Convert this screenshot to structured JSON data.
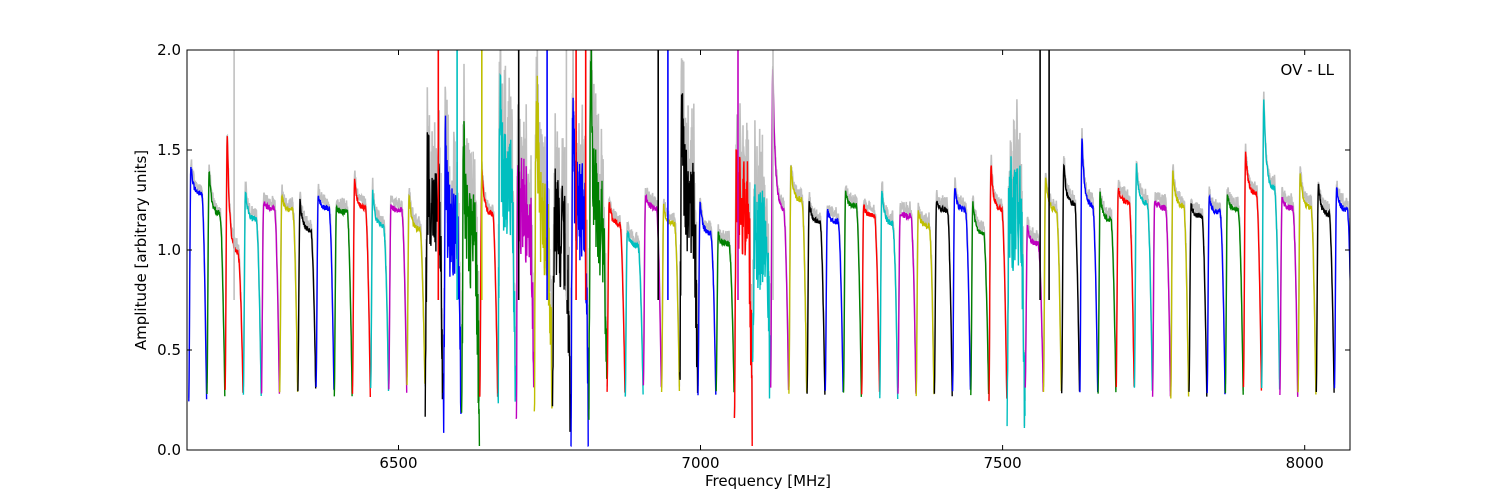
{
  "chart_data": {
    "type": "line",
    "title": "",
    "xlabel": "Frequency [MHz]",
    "ylabel": "Amplitude [arbitrary units]",
    "annotation": "OV - LL",
    "xlim": [
      6150,
      8075
    ],
    "ylim": [
      0.0,
      2.0
    ],
    "x_ticks": [
      6500,
      7000,
      7500,
      8000
    ],
    "x_tick_labels": [
      "6500",
      "7000",
      "7500",
      "8000"
    ],
    "y_ticks": [
      0.0,
      0.5,
      1.0,
      1.5,
      2.0
    ],
    "y_tick_labels": [
      "0.0",
      "0.5",
      "1.0",
      "1.5",
      "2.0"
    ],
    "grid": false,
    "legend": "none",
    "background_color": "#c0c0c0",
    "band_colors": [
      "#0000ff",
      "#008000",
      "#ff0000",
      "#00bfbf",
      "#bf00bf",
      "#bfbf00",
      "#000000"
    ],
    "band_start": 6153,
    "band_width": 30.1,
    "band_peaks": [
      1.42,
      1.4,
      1.57,
      1.3,
      1.24,
      1.27,
      1.25,
      1.27,
      1.21,
      1.36,
      1.29,
      1.22,
      1.28,
      1.38,
      1.4,
      1.5,
      1.4,
      1.68,
      1.32,
      1.9,
      1.25,
      1.62,
      1.9,
      1.24,
      1.1,
      1.28,
      1.22,
      1.6,
      1.25,
      1.08,
      1.4,
      1.12,
      1.9,
      1.41,
      1.24,
      1.2,
      1.29,
      1.22,
      1.31,
      1.18,
      1.19,
      1.25,
      1.31,
      1.25,
      1.43,
      1.25,
      1.12,
      1.36,
      1.43,
      1.56,
      1.28,
      1.31,
      1.42,
      1.25,
      1.39,
      1.23,
      1.27,
      1.28,
      1.49,
      1.75,
      1.26,
      1.39,
      1.33,
      1.32
    ],
    "band_plateaus": [
      1.28,
      1.18,
      0.98,
      1.15,
      1.21,
      1.2,
      1.1,
      1.21,
      1.19,
      1.21,
      1.12,
      1.2,
      1.1,
      1.2,
      1.08,
      1.05,
      1.18,
      1.28,
      1.2,
      1.06,
      1.04,
      1.19,
      1.12,
      1.13,
      1.02,
      1.21,
      1.13,
      1.2,
      1.08,
      1.03,
      1.2,
      1.06,
      1.2,
      1.25,
      1.14,
      1.14,
      1.22,
      1.17,
      1.13,
      1.17,
      1.12,
      1.2,
      1.2,
      1.08,
      1.2,
      1.15,
      1.03,
      1.2,
      1.23,
      1.22,
      1.15,
      1.24,
      1.23,
      1.21,
      1.22,
      1.17,
      1.19,
      1.2,
      1.28,
      1.3,
      1.21,
      1.21,
      1.18,
      1.2
    ],
    "band_troughs": [
      0.24,
      0.28,
      0.3,
      0.28,
      0.28,
      0.3,
      0.3,
      0.3,
      0.28,
      0.28,
      0.3,
      0.3,
      0.32,
      0.21,
      0.07,
      0.09,
      0.28,
      0.25,
      0.26,
      0.24,
      0.09,
      0.06,
      0.28,
      0.3,
      0.28,
      0.32,
      0.28,
      0.45,
      0.28,
      0.3,
      0.2,
      0.3,
      0.3,
      0.28,
      0.27,
      0.29,
      0.28,
      0.28,
      0.27,
      0.29,
      0.28,
      0.28,
      0.29,
      0.28,
      0.25,
      0.15,
      0.3,
      0.28,
      0.28,
      0.3,
      0.29,
      0.32,
      0.3,
      0.28,
      0.26,
      0.28,
      0.29,
      0.28,
      0.3,
      0.3,
      0.28,
      0.28,
      0.3,
      0.3
    ],
    "noisy_bands": [
      13,
      14,
      15,
      17,
      18,
      19,
      20,
      21,
      22,
      27,
      30,
      31,
      45
    ],
    "spikes": [
      {
        "x": 6228,
        "y": 2.0,
        "color": "#c0c0c0"
      },
      {
        "x": 6566,
        "y": 2.0,
        "color": "#ff0000"
      },
      {
        "x": 6597,
        "y": 2.0,
        "color": "#00bfbf"
      },
      {
        "x": 6638,
        "y": 2.0,
        "color": "#bfbf00"
      },
      {
        "x": 6699,
        "y": 2.0,
        "color": "#000000"
      },
      {
        "x": 6746,
        "y": 2.0,
        "color": "#0000ff"
      },
      {
        "x": 6778,
        "y": 2.0,
        "color": "#c0c0c0"
      },
      {
        "x": 6794,
        "y": 2.0,
        "color": "#ff0000"
      },
      {
        "x": 6810,
        "y": 2.0,
        "color": "#ff0000"
      },
      {
        "x": 6930,
        "y": 2.0,
        "color": "#000000"
      },
      {
        "x": 6946,
        "y": 2.0,
        "color": "#0000ff"
      },
      {
        "x": 7062,
        "y": 2.0,
        "color": "#bf00bf"
      },
      {
        "x": 7120,
        "y": 2.0,
        "color": "#c0c0c0"
      },
      {
        "x": 7562,
        "y": 2.0,
        "color": "#000000"
      },
      {
        "x": 7577,
        "y": 2.0,
        "color": "#000000"
      }
    ]
  }
}
